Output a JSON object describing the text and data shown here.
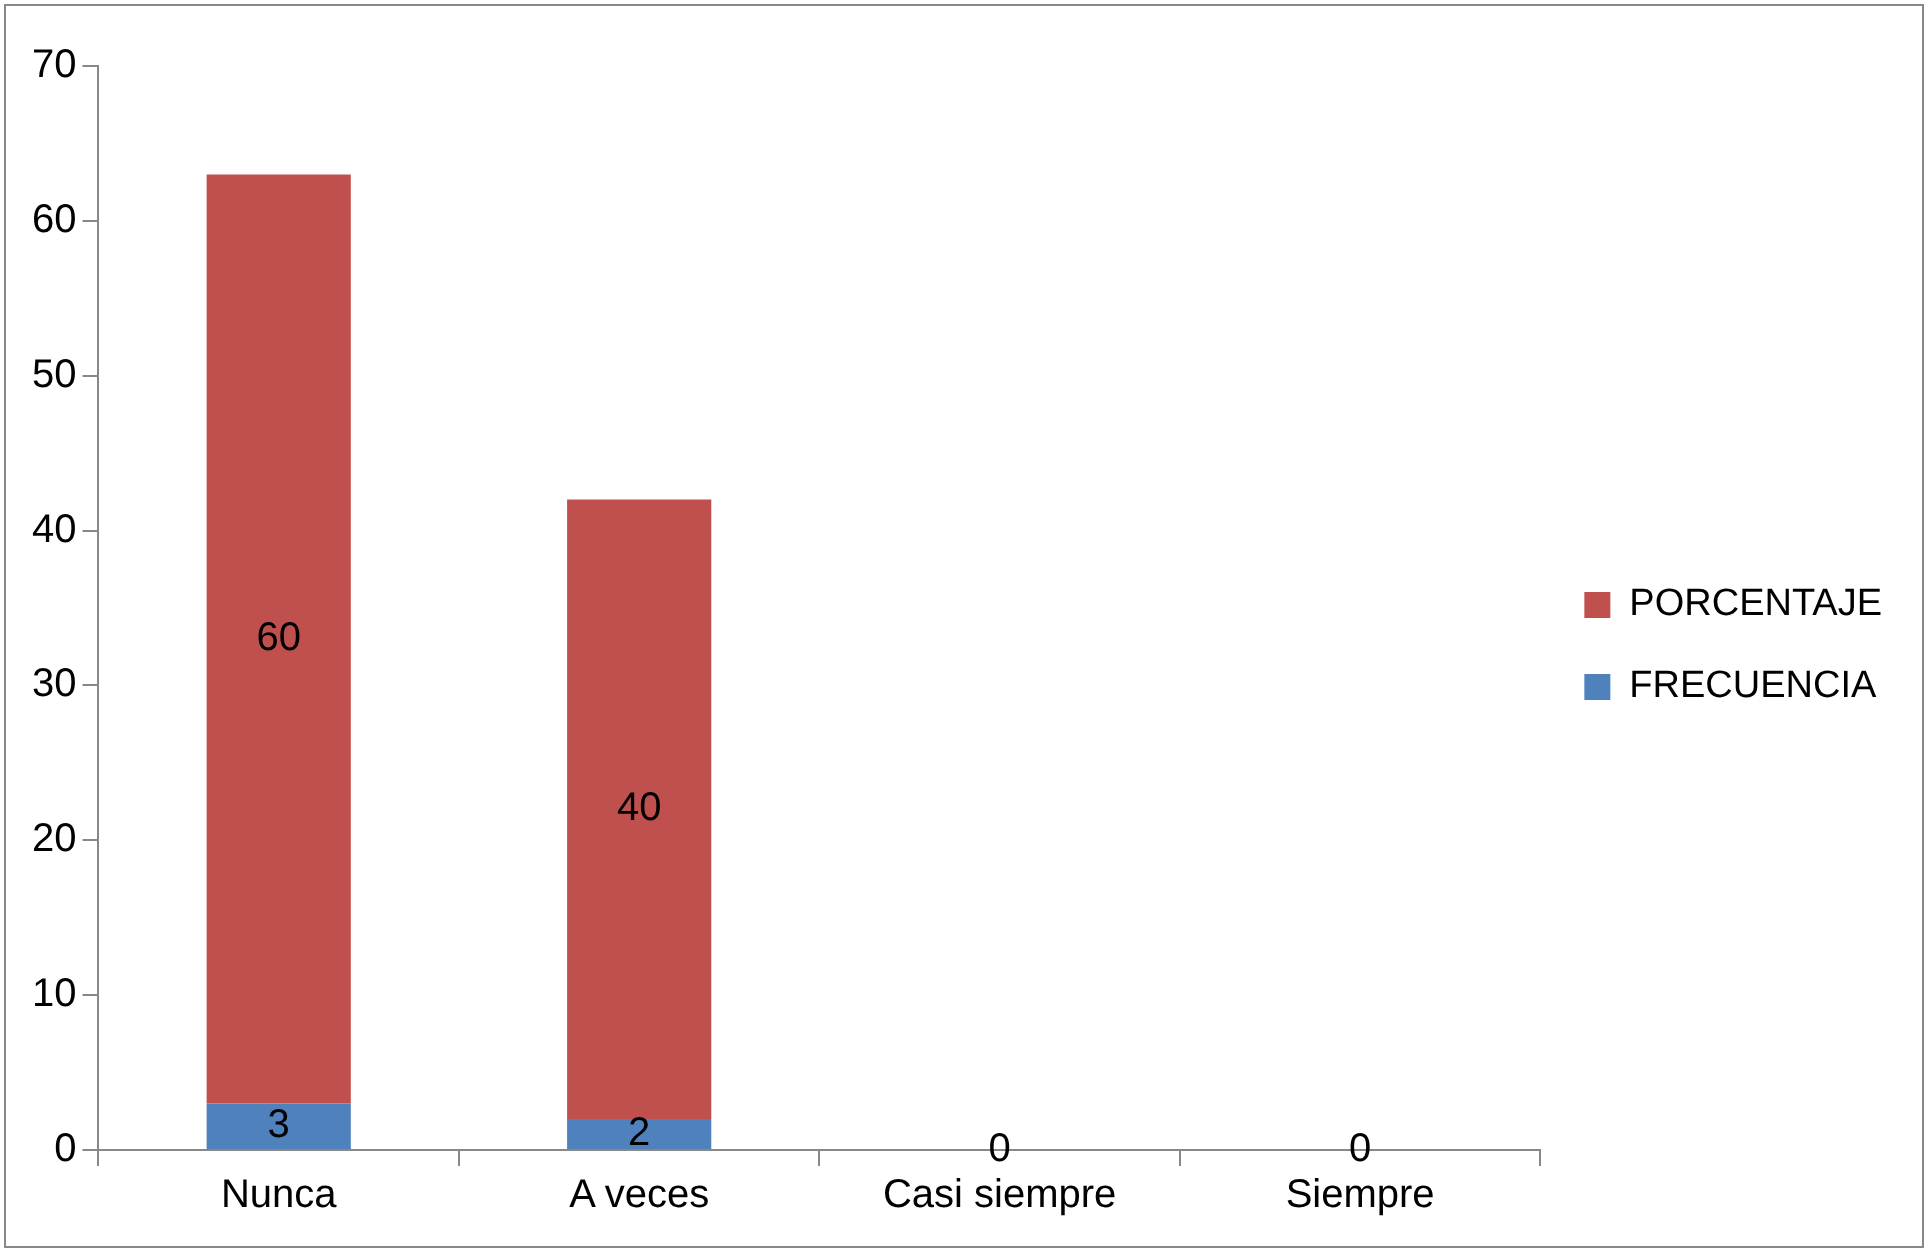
{
  "chart_data": {
    "type": "bar",
    "stacked": true,
    "categories": [
      "Nunca",
      "A veces",
      "Casi siempre",
      "Siempre"
    ],
    "series": [
      {
        "name": "FRECUENCIA",
        "color": "#4f81bd",
        "values": [
          3,
          2,
          0,
          0
        ],
        "value_labels": [
          "3",
          "2",
          "0",
          "0"
        ]
      },
      {
        "name": "PORCENTAJE",
        "color": "#c0504d",
        "values": [
          60,
          40,
          0,
          0
        ],
        "value_labels": [
          "60",
          "40",
          null,
          null
        ]
      }
    ],
    "ylim": [
      0,
      70
    ],
    "yticks": [
      0,
      10,
      20,
      30,
      40,
      50,
      60,
      70
    ],
    "grid": false,
    "legend": "right"
  }
}
